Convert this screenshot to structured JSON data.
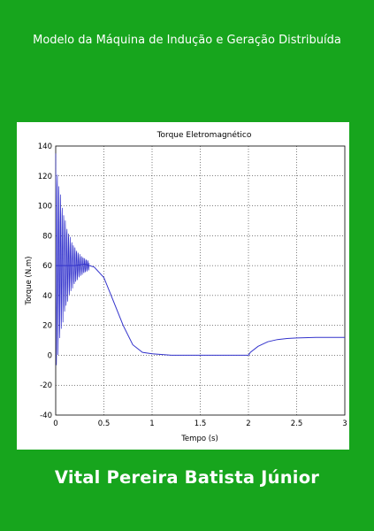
{
  "cover": {
    "title": "Modelo da Máquina de Indução e Geração Distribuída",
    "author": "Vital Pereira Batista Júnior",
    "background_color": "#17a51d"
  },
  "chart_data": {
    "type": "line",
    "title": "Torque Eletromagnético",
    "xlabel": "Tempo (s)",
    "ylabel": "Torque (N.m)",
    "xlim": [
      0,
      3
    ],
    "ylim": [
      -40,
      140
    ],
    "xticks": [
      "0",
      "0.5",
      "1",
      "1.5",
      "2",
      "2.5",
      "3"
    ],
    "yticks": [
      "-40",
      "-20",
      "0",
      "20",
      "40",
      "60",
      "80",
      "100",
      "120",
      "140"
    ],
    "grid": true,
    "line_color": "#3333cc",
    "series": [
      {
        "x": [
          0,
          0.1,
          0.2,
          0.3,
          0.35,
          0.4,
          0.5,
          0.6,
          0.7,
          0.8,
          0.9,
          1.0,
          1.2,
          1.5,
          2.0,
          2.02,
          2.1,
          2.2,
          2.3,
          2.4,
          2.5,
          2.7,
          3.0
        ],
        "values": [
          60,
          60,
          60,
          61,
          60,
          59,
          52,
          36,
          20,
          7,
          2,
          1,
          0,
          0,
          0,
          2,
          6,
          9,
          10.5,
          11.2,
          11.6,
          12,
          12
        ]
      }
    ]
  }
}
